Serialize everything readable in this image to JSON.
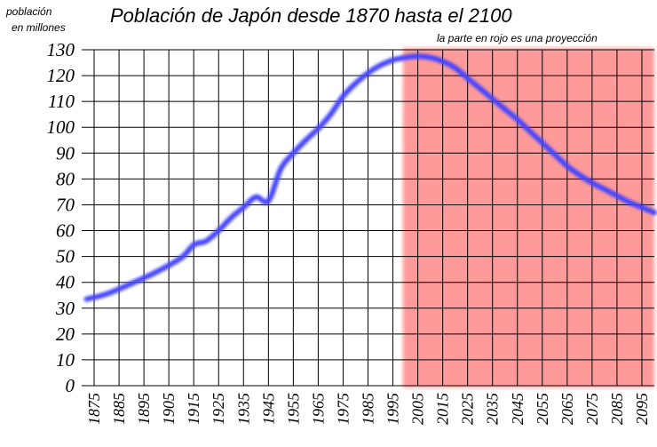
{
  "chart_data": {
    "type": "line",
    "title": "Población de Japón desde 1870 hasta el 2100",
    "subtitle": "la parte en rojo es una proyección",
    "ylabel": [
      "población",
      "en millones"
    ],
    "xlabel": "",
    "xlim": [
      1870,
      2100
    ],
    "ylim": [
      0,
      130
    ],
    "y_ticks": [
      0,
      10,
      20,
      30,
      40,
      50,
      60,
      70,
      80,
      90,
      100,
      110,
      120,
      130
    ],
    "x_ticks": [
      1875,
      1885,
      1895,
      1905,
      1915,
      1925,
      1935,
      1945,
      1955,
      1965,
      1975,
      1985,
      1995,
      2005,
      2015,
      2025,
      2035,
      2045,
      2055,
      2065,
      2075,
      2085,
      2095
    ],
    "grid": true,
    "projection_start": 1999,
    "colors": {
      "line": "#4444ff",
      "projection": "#ff9a9a",
      "grid": "#000000"
    },
    "series": [
      {
        "x": [
          1872,
          1880,
          1890,
          1900,
          1910,
          1915,
          1920,
          1925,
          1930,
          1935,
          1940,
          1945,
          1950,
          1955,
          1960,
          1965,
          1970,
          1975,
          1980,
          1985,
          1990,
          1995,
          2000,
          2005,
          2010,
          2015,
          2020,
          2025,
          2030,
          2035,
          2040,
          2045,
          2050,
          2055,
          2060,
          2065,
          2070,
          2075,
          2080,
          2085,
          2090,
          2095,
          2100
        ],
        "y": [
          33.5,
          35.5,
          39.5,
          44,
          49.5,
          54.5,
          56,
          60,
          65,
          69,
          73,
          71.5,
          84,
          90,
          95,
          99.5,
          105,
          112,
          117,
          121,
          124,
          126,
          127,
          127.5,
          127,
          125.5,
          123,
          119,
          115,
          111,
          107,
          103,
          98.5,
          94,
          89.5,
          85,
          81.5,
          78.5,
          76,
          73.5,
          71,
          69,
          67
        ]
      }
    ]
  }
}
